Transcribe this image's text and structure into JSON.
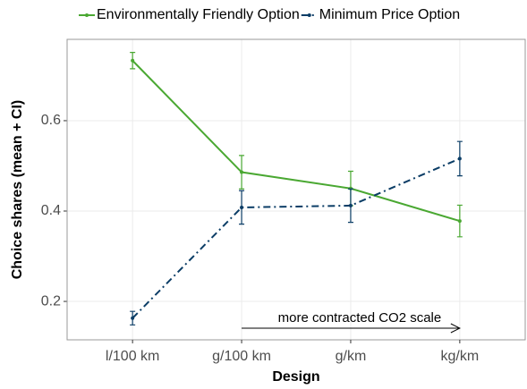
{
  "chart_data": {
    "type": "line",
    "xlabel": "Design",
    "ylabel": "Choice shares (mean + CI)",
    "categories": [
      "l/100 km",
      "g/100 km",
      "g/km",
      "kg/km"
    ],
    "series": [
      {
        "name": "Environmentally Friendly Option",
        "color": "#4aa832",
        "dash": "solid",
        "values": [
          0.733,
          0.486,
          0.45,
          0.378
        ],
        "errors": [
          0.018,
          0.037,
          0.038,
          0.035
        ]
      },
      {
        "name": "Minimum Price Option",
        "color": "#0b3d66",
        "dash": "dashdot",
        "values": [
          0.163,
          0.408,
          0.412,
          0.516
        ],
        "errors": [
          0.015,
          0.037,
          0.037,
          0.038
        ]
      }
    ],
    "ylim": [
      0.115,
      0.78
    ],
    "yticks": [
      0.2,
      0.4,
      0.6
    ],
    "grid": true,
    "legend": "top",
    "annotation": "more contracted CO2 scale"
  }
}
